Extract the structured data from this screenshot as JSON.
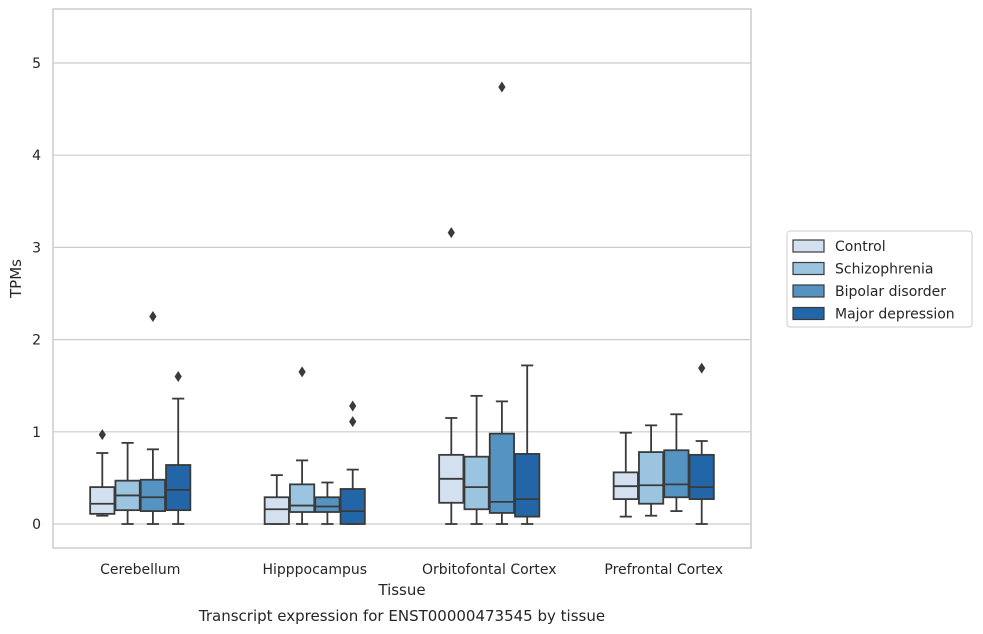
{
  "chart_data": {
    "type": "box",
    "title": "Transcript expression for ENST00000473545 by tissue",
    "xlabel": "Tissue",
    "ylabel": "TPMs",
    "ylim": [
      -0.25,
      5.6
    ],
    "yticks": [
      0,
      1,
      2,
      3,
      4,
      5
    ],
    "grid": true,
    "legend_position": "right",
    "categories": [
      "Cerebellum",
      "Hipppocampus",
      "Orbitofontal Cortex",
      "Prefrontal Cortex"
    ],
    "series": [
      {
        "name": "Control",
        "color": "#d2e0f0",
        "boxes": [
          {
            "whislo": 0.09,
            "q1": 0.11,
            "med": 0.22,
            "q3": 0.4,
            "whishi": 0.77,
            "fliers": [
              0.97
            ]
          },
          {
            "whislo": 0.0,
            "q1": 0.0,
            "med": 0.16,
            "q3": 0.29,
            "whishi": 0.53,
            "fliers": []
          },
          {
            "whislo": 0.0,
            "q1": 0.23,
            "med": 0.49,
            "q3": 0.75,
            "whishi": 1.15,
            "fliers": [
              3.16
            ]
          },
          {
            "whislo": 0.08,
            "q1": 0.27,
            "med": 0.41,
            "q3": 0.56,
            "whishi": 0.99,
            "fliers": []
          }
        ]
      },
      {
        "name": "Schizophrenia",
        "color": "#9ac4df",
        "boxes": [
          {
            "whislo": 0.0,
            "q1": 0.15,
            "med": 0.31,
            "q3": 0.47,
            "whishi": 0.88,
            "fliers": []
          },
          {
            "whislo": 0.0,
            "q1": 0.13,
            "med": 0.2,
            "q3": 0.43,
            "whishi": 0.69,
            "fliers": [
              1.65
            ]
          },
          {
            "whislo": 0.0,
            "q1": 0.16,
            "med": 0.4,
            "q3": 0.73,
            "whishi": 1.39,
            "fliers": []
          },
          {
            "whislo": 0.09,
            "q1": 0.22,
            "med": 0.42,
            "q3": 0.78,
            "whishi": 1.07,
            "fliers": []
          }
        ]
      },
      {
        "name": "Bipolar disorder",
        "color": "#5593c3",
        "boxes": [
          {
            "whislo": 0.0,
            "q1": 0.14,
            "med": 0.29,
            "q3": 0.48,
            "whishi": 0.81,
            "fliers": [
              2.25
            ]
          },
          {
            "whislo": 0.0,
            "q1": 0.13,
            "med": 0.19,
            "q3": 0.29,
            "whishi": 0.45,
            "fliers": []
          },
          {
            "whislo": 0.0,
            "q1": 0.12,
            "med": 0.24,
            "q3": 0.98,
            "whishi": 1.33,
            "fliers": [
              4.74
            ]
          },
          {
            "whislo": 0.14,
            "q1": 0.29,
            "med": 0.43,
            "q3": 0.8,
            "whishi": 1.19,
            "fliers": []
          }
        ]
      },
      {
        "name": "Major depression",
        "color": "#2266a7",
        "boxes": [
          {
            "whislo": 0.0,
            "q1": 0.15,
            "med": 0.37,
            "q3": 0.64,
            "whishi": 1.36,
            "fliers": [
              1.6
            ]
          },
          {
            "whislo": 0.0,
            "q1": 0.0,
            "med": 0.14,
            "q3": 0.38,
            "whishi": 0.59,
            "fliers": [
              1.11,
              1.28
            ]
          },
          {
            "whislo": 0.0,
            "q1": 0.08,
            "med": 0.27,
            "q3": 0.76,
            "whishi": 1.72,
            "fliers": []
          },
          {
            "whislo": 0.0,
            "q1": 0.27,
            "med": 0.4,
            "q3": 0.75,
            "whishi": 0.9,
            "fliers": [
              1.69
            ]
          }
        ]
      }
    ]
  }
}
